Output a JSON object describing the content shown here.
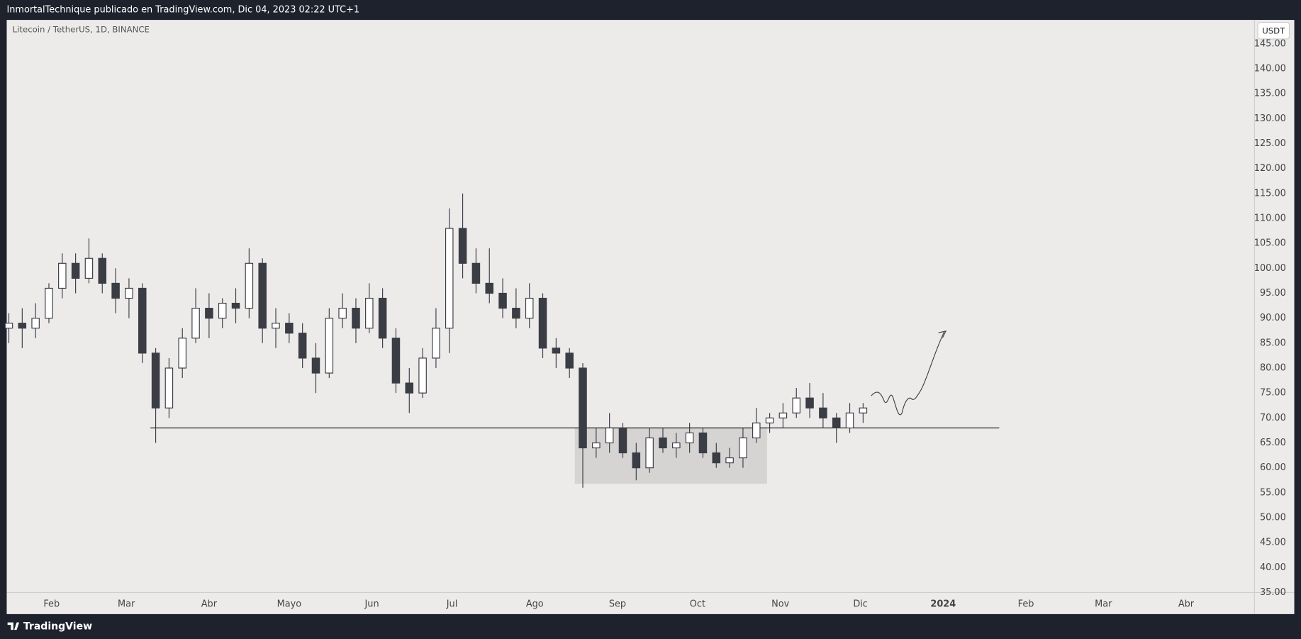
{
  "header": "InmortalTechnique publicado en TradingView.com, Dic 04, 2023 02:22 UTC+1",
  "currency": "USDT",
  "footer": "TradingView",
  "chart_data": {
    "type": "candlestick",
    "title": "Litecoin / TetherUS, 1D, BINANCE",
    "x": [
      15,
      20,
      25,
      30,
      35,
      40,
      45,
      50,
      55,
      60,
      65,
      70,
      75,
      80,
      85,
      90,
      95,
      100,
      105,
      110,
      115,
      120,
      125,
      130,
      135,
      140,
      145,
      150,
      155,
      160,
      165,
      170,
      175,
      180,
      185,
      190,
      195,
      200,
      205,
      210,
      215,
      220,
      225,
      230,
      235,
      240,
      245,
      250,
      255,
      260,
      265,
      270,
      275,
      280,
      285,
      290,
      295,
      300,
      305,
      310,
      315,
      320,
      325,
      330,
      335
    ],
    "open": [
      88,
      89,
      88,
      90,
      96,
      101,
      98,
      102,
      97,
      94,
      96,
      83,
      72,
      80,
      86,
      92,
      90,
      93,
      92,
      101,
      88,
      89,
      87,
      82,
      79,
      90,
      92,
      88,
      94,
      86,
      77,
      75,
      82,
      88,
      108,
      101,
      97,
      95,
      92,
      90,
      94,
      84,
      83,
      80,
      64,
      65,
      68,
      63,
      60,
      66,
      64,
      65,
      67,
      63,
      61,
      62,
      66,
      69,
      70,
      71,
      74,
      72,
      70,
      68,
      71
    ],
    "high": [
      91,
      92,
      93,
      97,
      103,
      103,
      106,
      103,
      100,
      98,
      97,
      84,
      82,
      88,
      96,
      95,
      94,
      96,
      104,
      102,
      92,
      91,
      89,
      85,
      92,
      95,
      94,
      97,
      96,
      88,
      80,
      84,
      92,
      112,
      115,
      104,
      104,
      98,
      96,
      97,
      95,
      86,
      84,
      81,
      68,
      71,
      69,
      65,
      68,
      68,
      67,
      69,
      68,
      65,
      64,
      68,
      72,
      71,
      73,
      76,
      77,
      75,
      71,
      73,
      73
    ],
    "low": [
      85,
      84,
      86,
      89,
      94,
      95,
      97,
      95,
      91,
      90,
      81,
      65,
      70,
      78,
      85,
      86,
      88,
      89,
      90,
      85,
      84,
      85,
      80,
      75,
      78,
      88,
      85,
      87,
      84,
      75,
      71,
      74,
      80,
      83,
      98,
      95,
      93,
      90,
      88,
      88,
      82,
      80,
      78,
      56,
      62,
      63,
      62,
      57.5,
      59,
      63,
      62,
      63,
      62,
      60,
      60,
      60,
      65,
      67,
      68,
      70,
      70,
      68,
      65,
      67,
      69
    ],
    "close": [
      89,
      88,
      90,
      96,
      101,
      98,
      102,
      97,
      94,
      96,
      83,
      72,
      80,
      86,
      92,
      90,
      93,
      92,
      101,
      88,
      89,
      87,
      82,
      79,
      90,
      92,
      88,
      94,
      86,
      77,
      75,
      82,
      88,
      108,
      101,
      97,
      95,
      92,
      90,
      94,
      84,
      83,
      80,
      64,
      65,
      68,
      63,
      60,
      66,
      64,
      65,
      67,
      63,
      61,
      62,
      66,
      69,
      70,
      71,
      74,
      72,
      70,
      68,
      71,
      72
    ],
    "up_color": "#ffffff",
    "down_color": "#3b3d45",
    "edge_color": "#3b3d45",
    "xlim": [
      14.2,
      481.6
    ],
    "xticks": [
      {
        "value": 31,
        "label": "Feb"
      },
      {
        "value": 59,
        "label": "Mar"
      },
      {
        "value": 90,
        "label": "Abr"
      },
      {
        "value": 120,
        "label": "Mayo"
      },
      {
        "value": 151,
        "label": "Jun"
      },
      {
        "value": 181,
        "label": "Jul"
      },
      {
        "value": 212,
        "label": "Ago"
      },
      {
        "value": 243,
        "label": "Sep"
      },
      {
        "value": 273,
        "label": "Oct"
      },
      {
        "value": 304,
        "label": "Nov"
      },
      {
        "value": 334,
        "label": "Dic"
      },
      {
        "value": 365,
        "label": "2024"
      },
      {
        "value": 396,
        "label": "Feb"
      },
      {
        "value": 425,
        "label": "Mar"
      },
      {
        "value": 456,
        "label": "Abr"
      }
    ],
    "ylim": [
      35,
      149.8
    ],
    "yticks": [
      {
        "value": 35,
        "label": "35.00"
      },
      {
        "value": 40,
        "label": "40.00"
      },
      {
        "value": 45,
        "label": "45.00"
      },
      {
        "value": 50,
        "label": "50.00"
      },
      {
        "value": 55,
        "label": "55.00"
      },
      {
        "value": 60,
        "label": "60.00"
      },
      {
        "value": 65,
        "label": "65.00"
      },
      {
        "value": 70,
        "label": "70.00"
      },
      {
        "value": 75,
        "label": "75.00"
      },
      {
        "value": 80,
        "label": "80.00"
      },
      {
        "value": 85,
        "label": "85.00"
      },
      {
        "value": 90,
        "label": "90.00"
      },
      {
        "value": 95,
        "label": "95.00"
      },
      {
        "value": 100,
        "label": "100.00"
      },
      {
        "value": 105,
        "label": "105.00"
      },
      {
        "value": 110,
        "label": "110.00"
      },
      {
        "value": 115,
        "label": "115.00"
      },
      {
        "value": 120,
        "label": "120.00"
      },
      {
        "value": 125,
        "label": "125.00"
      },
      {
        "value": 130,
        "label": "130.00"
      },
      {
        "value": 135,
        "label": "135.00"
      },
      {
        "value": 140,
        "label": "140.00"
      },
      {
        "value": 145,
        "label": "145.00"
      }
    ],
    "grid": false,
    "support": {
      "value": 68,
      "x": [
        68,
        386
      ]
    },
    "range_box": {
      "x": [
        227,
        299
      ],
      "y": [
        56.8,
        68.1
      ]
    }
  }
}
